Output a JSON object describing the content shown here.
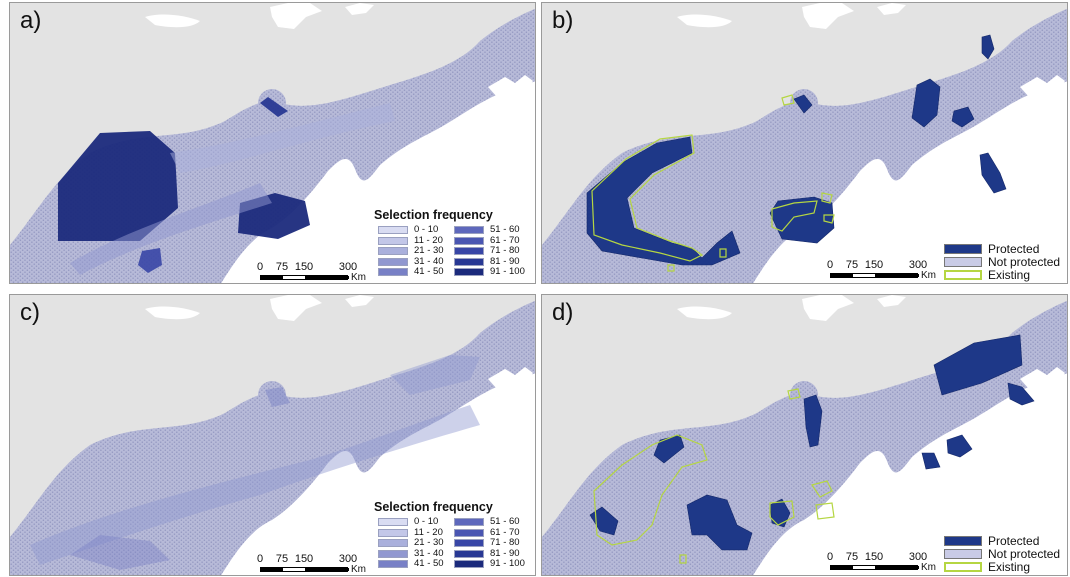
{
  "panels": {
    "a": {
      "label": "a)",
      "type": "frequency"
    },
    "b": {
      "label": "b)",
      "type": "status"
    },
    "c": {
      "label": "c)",
      "type": "frequency"
    },
    "d": {
      "label": "d)",
      "type": "status"
    }
  },
  "frequency_legend": {
    "title": "Selection frequency",
    "classes": [
      {
        "label": "0 - 10",
        "color": "#d9dcf2"
      },
      {
        "label": "11 - 20",
        "color": "#c3c7e8"
      },
      {
        "label": "21 - 30",
        "color": "#aab0dc"
      },
      {
        "label": "31 - 40",
        "color": "#9198d0"
      },
      {
        "label": "41 - 50",
        "color": "#7880c6"
      },
      {
        "label": "51 - 60",
        "color": "#5e68bc"
      },
      {
        "label": "61 - 70",
        "color": "#4a56b2"
      },
      {
        "label": "71 - 80",
        "color": "#3846a6"
      },
      {
        "label": "81 - 90",
        "color": "#283894"
      },
      {
        "label": "91 - 100",
        "color": "#1b2a7c"
      }
    ]
  },
  "status_legend": {
    "items": [
      {
        "label": "Protected",
        "color": "#1e3888",
        "type": "fill"
      },
      {
        "label": "Not protected",
        "color": "#c9cbe6",
        "type": "fill"
      },
      {
        "label": "Existing",
        "color": "#b5d642",
        "type": "outline"
      }
    ]
  },
  "scale_bar": {
    "ticks": [
      "0",
      "75",
      "150",
      "300"
    ],
    "unit": "Km"
  },
  "colors": {
    "land": "#e3e3e3",
    "sea_cell": "#b7bad8",
    "protected": "#1e3888",
    "existing_outline": "#b5d642",
    "white_area": "#ffffff"
  }
}
